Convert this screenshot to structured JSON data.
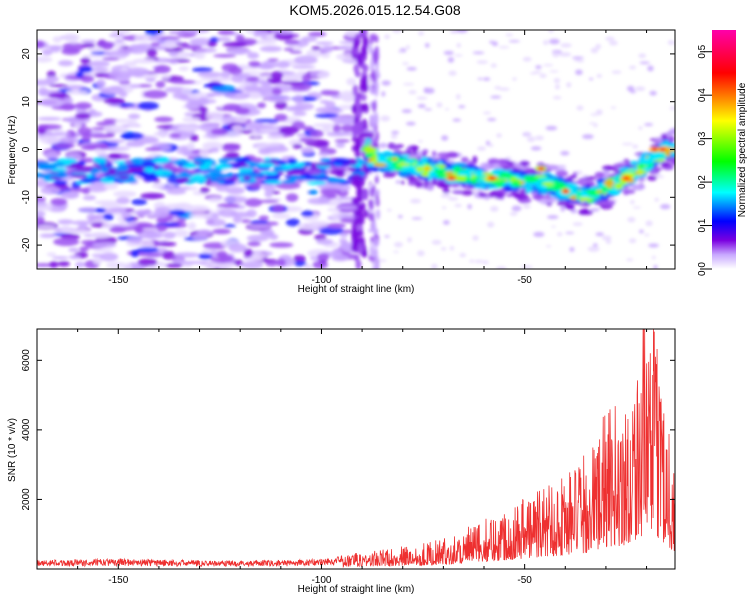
{
  "title": "KOM5.2026.015.12.54.G08",
  "chart_data": [
    {
      "type": "heatmap",
      "xlabel": "Height of straight line (km)",
      "ylabel": "Frequency (Hz)",
      "xlim": [
        -170,
        -13
      ],
      "ylim": [
        -25,
        25
      ],
      "xticks": [
        -150,
        -100,
        -50
      ],
      "yticks": [
        -20,
        -10,
        0,
        10,
        20
      ],
      "colorbar": {
        "label": "Normalized spectral amplitude",
        "range": [
          0,
          0.55
        ],
        "ticks": [
          0.0,
          0.1,
          0.2,
          0.3,
          0.4,
          0.5
        ],
        "stops": [
          "#ffffff",
          "#c8a8ff",
          "#7a00e0",
          "#0000ff",
          "#00ffff",
          "#00ff00",
          "#ffff00",
          "#ff0000",
          "#ff00aa"
        ]
      },
      "ridge": {
        "description_points": [
          {
            "x": -88,
            "f": -2
          },
          {
            "x": -75,
            "f": -4
          },
          {
            "x": -60,
            "f": -6
          },
          {
            "x": -45,
            "f": -7
          },
          {
            "x": -35,
            "f": -10
          },
          {
            "x": -25,
            "f": -6
          },
          {
            "x": -15,
            "f": 0
          }
        ]
      }
    },
    {
      "type": "line",
      "xlabel": "Height of straight line (km)",
      "ylabel": "SNR (10 * v/v)",
      "xlim": [
        -170,
        -13
      ],
      "ylim": [
        0,
        6900
      ],
      "xticks": [
        -150,
        -100,
        -50
      ],
      "yticks": [
        2000,
        4000,
        6000
      ],
      "series": [
        {
          "name": "SNR",
          "color": "#ee3030",
          "envelope_x": [
            -170,
            -150,
            -130,
            -110,
            -100,
            -90,
            -80,
            -70,
            -60,
            -50,
            -40,
            -35,
            -30,
            -25,
            -20,
            -17,
            -15,
            -13
          ],
          "envelope_y": [
            250,
            300,
            250,
            250,
            300,
            450,
            600,
            800,
            1300,
            2000,
            2600,
            3000,
            4200,
            4500,
            6900,
            5900,
            4500,
            2800
          ]
        }
      ]
    }
  ]
}
